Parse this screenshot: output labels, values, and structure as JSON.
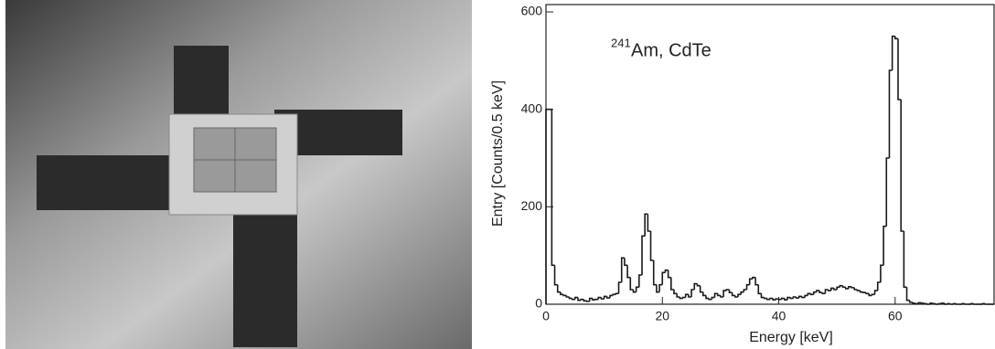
{
  "chart_data": {
    "type": "histogram",
    "annotation_sup": "241",
    "annotation": "Am, CdTe",
    "x_label": "Energy [keV]",
    "y_label": "Entry [Counts/0.5 keV]",
    "xlim": [
      0,
      77
    ],
    "ylim": [
      0,
      615
    ],
    "xticks": [
      0,
      20,
      40,
      60
    ],
    "yticks": [
      0,
      200,
      400,
      600
    ],
    "color": "#1a1a1a",
    "bins": [
      0,
      0.5,
      1,
      1.5,
      2,
      2.5,
      3,
      3.5,
      4,
      4.5,
      5,
      5.5,
      6,
      6.5,
      7,
      7.5,
      8,
      8.5,
      9,
      9.5,
      10,
      10.5,
      11,
      11.5,
      12,
      12.5,
      13,
      13.5,
      14,
      14.5,
      15,
      15.5,
      16,
      16.5,
      17,
      17.5,
      18,
      18.5,
      19,
      19.5,
      20,
      20.5,
      21,
      21.5,
      22,
      22.5,
      23,
      23.5,
      24,
      24.5,
      25,
      25.5,
      26,
      26.5,
      27,
      27.5,
      28,
      28.5,
      29,
      29.5,
      30,
      30.5,
      31,
      31.5,
      32,
      32.5,
      33,
      33.5,
      34,
      34.5,
      35,
      35.5,
      36,
      36.5,
      37,
      37.5,
      38,
      38.5,
      39,
      39.5,
      40,
      40.5,
      41,
      41.5,
      42,
      42.5,
      43,
      43.5,
      44,
      44.5,
      45,
      45.5,
      46,
      46.5,
      47,
      47.5,
      48,
      48.5,
      49,
      49.5,
      50,
      50.5,
      51,
      51.5,
      52,
      52.5,
      53,
      53.5,
      54,
      54.5,
      55,
      55.5,
      56,
      56.5,
      57,
      57.5,
      58,
      58.5,
      59,
      59.5,
      60,
      60.5,
      61,
      61.5,
      62,
      62.5,
      63,
      63.5,
      64,
      64.5,
      65,
      65.5,
      66,
      66.5,
      67,
      67.5,
      68,
      68.5,
      69,
      69.5,
      70,
      70.5,
      71,
      71.5,
      72,
      72.5,
      73,
      73.5,
      74,
      74.5,
      75,
      75.5,
      76,
      76.5,
      77
    ],
    "values": [
      400,
      400,
      80,
      40,
      25,
      20,
      18,
      15,
      12,
      10,
      14,
      8,
      10,
      7,
      6,
      12,
      9,
      10,
      14,
      11,
      16,
      13,
      18,
      20,
      22,
      45,
      95,
      80,
      55,
      30,
      25,
      35,
      60,
      140,
      185,
      150,
      90,
      40,
      25,
      40,
      65,
      70,
      55,
      30,
      22,
      15,
      12,
      14,
      20,
      15,
      30,
      42,
      38,
      25,
      18,
      12,
      10,
      14,
      22,
      18,
      15,
      28,
      30,
      24,
      18,
      15,
      20,
      25,
      30,
      40,
      52,
      55,
      40,
      22,
      14,
      12,
      10,
      12,
      9,
      11,
      10,
      12,
      9,
      14,
      12,
      15,
      13,
      16,
      14,
      18,
      22,
      20,
      25,
      28,
      24,
      22,
      30,
      28,
      33,
      30,
      35,
      38,
      35,
      32,
      36,
      34,
      30,
      28,
      25,
      24,
      22,
      18,
      20,
      28,
      45,
      80,
      160,
      300,
      480,
      550,
      545,
      420,
      150,
      35,
      8,
      4,
      2,
      1,
      3,
      2,
      1,
      0,
      2,
      1,
      0,
      1,
      2,
      0,
      1,
      0,
      1,
      0,
      0,
      1,
      0,
      0,
      1,
      0,
      0,
      0,
      1,
      0,
      0,
      0
    ]
  }
}
